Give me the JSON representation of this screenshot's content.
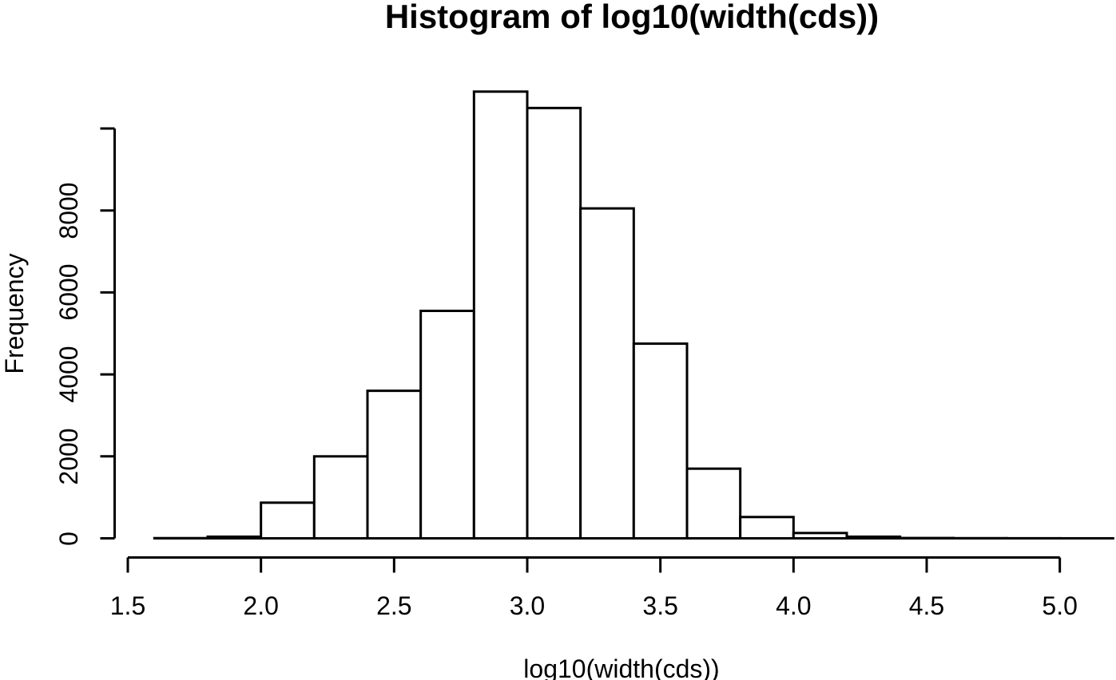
{
  "chart_data": {
    "type": "bar",
    "subtype": "histogram",
    "title": "Histogram of log10(width(cds))",
    "xlabel": "log10(width(cds))",
    "ylabel": "Frequency",
    "bin_width": 0.2,
    "breaks": [
      1.6,
      1.8,
      2.0,
      2.2,
      2.4,
      2.6,
      2.8,
      3.0,
      3.2,
      3.4,
      3.6,
      3.8,
      4.0,
      4.2,
      4.4,
      4.6,
      4.8,
      5.0,
      5.2
    ],
    "counts": [
      5,
      40,
      870,
      2000,
      3600,
      5550,
      10900,
      10500,
      8050,
      4750,
      1700,
      520,
      130,
      40,
      8,
      4,
      2,
      1
    ],
    "x_ticks": [
      1.5,
      2.0,
      2.5,
      3.0,
      3.5,
      4.0,
      4.5,
      5.0
    ],
    "x_tick_labels": [
      "1.5",
      "2.0",
      "2.5",
      "3.0",
      "3.5",
      "4.0",
      "4.5",
      "5.0"
    ],
    "y_ticks": [
      0,
      2000,
      4000,
      6000,
      8000,
      10000
    ],
    "y_tick_labels": [
      "0",
      "2000",
      "4000",
      "6000",
      "8000",
      ""
    ],
    "xlim": [
      1.5,
      5.0
    ],
    "ylim": [
      0,
      10000
    ],
    "grid": false,
    "legend": false,
    "bar_fill_color": "#ffffff",
    "bar_stroke_color": "#000000",
    "axis_color": "#000000",
    "background_color": "#ffffff"
  }
}
